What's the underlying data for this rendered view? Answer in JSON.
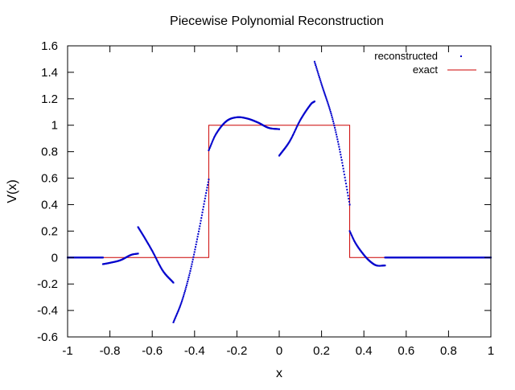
{
  "chart_data": {
    "type": "scatter",
    "title": "Piecewise Polynomial Reconstruction",
    "xlabel": "x",
    "ylabel": "V(x)",
    "xlim": [
      -1,
      1
    ],
    "ylim": [
      -0.6,
      1.6
    ],
    "xticks": [
      -1,
      -0.8,
      -0.6,
      -0.4,
      -0.2,
      0,
      0.2,
      0.4,
      0.6,
      0.8,
      1
    ],
    "xtick_labels": [
      "-1",
      "-0.8",
      "-0.6",
      "-0.4",
      "-0.2",
      "0",
      "0.2",
      "0.4",
      "0.6",
      "0.8",
      "1"
    ],
    "yticks": [
      -0.6,
      -0.4,
      -0.2,
      0,
      0.2,
      0.4,
      0.6,
      0.8,
      1,
      1.2,
      1.4,
      1.6
    ],
    "ytick_labels": [
      "-0.6",
      "-0.4",
      "-0.2",
      "0",
      "0.2",
      "0.4",
      "0.6",
      "0.8",
      "1",
      "1.2",
      "1.4",
      "1.6"
    ],
    "grid": false,
    "legend_position": "top-right",
    "series": [
      {
        "name": "reconstructed",
        "kind": "points",
        "color": "#0000cc",
        "segments": [
          [
            [
              -1.0,
              0.0
            ],
            [
              -0.833,
              0.0
            ]
          ],
          [
            [
              -0.833,
              -0.05
            ],
            [
              -0.8,
              -0.04
            ],
            [
              -0.75,
              -0.02
            ],
            [
              -0.7,
              0.02
            ],
            [
              -0.667,
              0.03
            ]
          ],
          [
            [
              -0.667,
              0.23
            ],
            [
              -0.64,
              0.16
            ],
            [
              -0.6,
              0.05
            ],
            [
              -0.55,
              -0.1
            ],
            [
              -0.5,
              -0.19
            ]
          ],
          [
            [
              -0.5,
              -0.49
            ],
            [
              -0.46,
              -0.33
            ],
            [
              -0.42,
              -0.1
            ],
            [
              -0.38,
              0.2
            ],
            [
              -0.35,
              0.45
            ],
            [
              -0.333,
              0.59
            ]
          ],
          [
            [
              -0.333,
              0.81
            ],
            [
              -0.3,
              0.93
            ],
            [
              -0.25,
              1.03
            ],
            [
              -0.2,
              1.06
            ],
            [
              -0.15,
              1.05
            ],
            [
              -0.1,
              1.02
            ],
            [
              -0.05,
              0.98
            ],
            [
              0.0,
              0.97
            ]
          ],
          [
            [
              0.0,
              0.77
            ],
            [
              0.05,
              0.88
            ],
            [
              0.1,
              1.04
            ],
            [
              0.15,
              1.16
            ],
            [
              0.167,
              1.18
            ]
          ],
          [
            [
              0.167,
              1.48
            ],
            [
              0.2,
              1.31
            ],
            [
              0.25,
              1.06
            ],
            [
              0.29,
              0.78
            ],
            [
              0.333,
              0.4
            ]
          ],
          [
            [
              0.333,
              0.2
            ],
            [
              0.36,
              0.11
            ],
            [
              0.4,
              0.02
            ],
            [
              0.43,
              -0.03
            ],
            [
              0.46,
              -0.06
            ],
            [
              0.5,
              -0.06
            ]
          ],
          [
            [
              0.5,
              0.0
            ],
            [
              1.0,
              0.0
            ]
          ]
        ]
      },
      {
        "name": "exact",
        "kind": "line",
        "color": "#cc0000",
        "x": [
          -1,
          -0.333,
          -0.333,
          0.333,
          0.333,
          1
        ],
        "y": [
          0,
          0,
          1,
          1,
          0,
          0
        ]
      }
    ]
  }
}
